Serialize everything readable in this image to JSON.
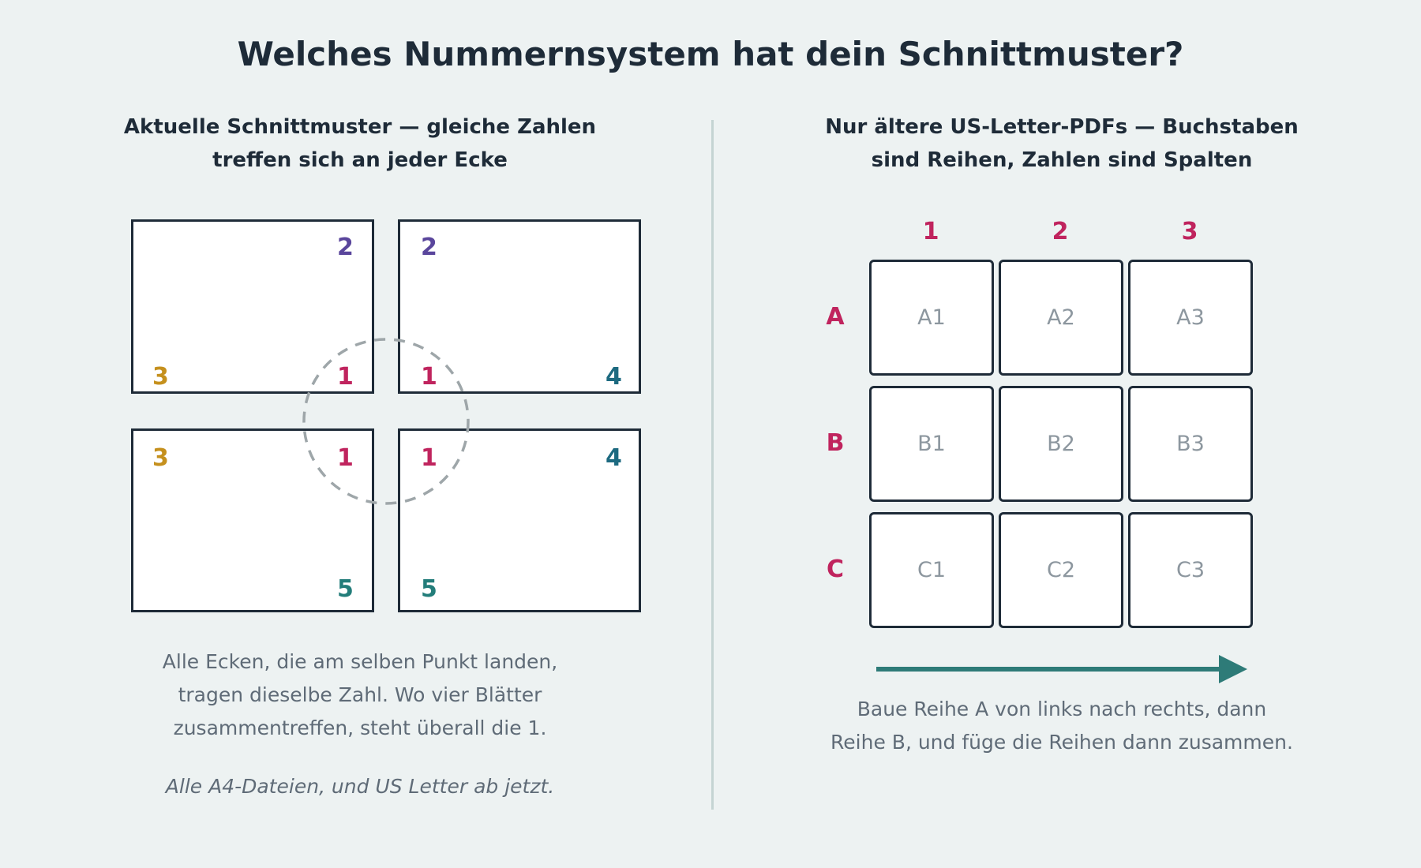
{
  "title": "Welches Nummernsystem hat dein Schnittmuster?",
  "left_panel": {
    "heading_lines": [
      "Aktuelle Schnittmuster — gleiche Zahlen",
      "treffen sich an jeder Ecke"
    ],
    "sheets": {
      "top_left": {
        "top_right": "2",
        "bottom_left": "3",
        "bottom_right": "1"
      },
      "top_right": {
        "top_left": "2",
        "bottom_left": "1",
        "bottom_right": "4"
      },
      "bottom_left": {
        "top_left": "3",
        "top_right": "1",
        "bottom_right": "5"
      },
      "bottom_right": {
        "top_left": "1",
        "top_right": "4",
        "bottom_left": "5"
      }
    },
    "description_lines": [
      "Alle Ecken, die am selben Punkt landen,",
      "tragen dieselbe Zahl. Wo vier Blätter",
      "zusammentreffen, steht überall die 1."
    ],
    "note": "Alle A4-Dateien, und US Letter ab jetzt."
  },
  "right_panel": {
    "heading_lines": [
      "Nur ältere US-Letter-PDFs — Buchstaben",
      "sind Reihen, Zahlen sind Spalten"
    ],
    "columns": [
      "1",
      "2",
      "3"
    ],
    "rows": [
      "A",
      "B",
      "C"
    ],
    "cells": [
      [
        "A1",
        "A2",
        "A3"
      ],
      [
        "B1",
        "B2",
        "B3"
      ],
      [
        "C1",
        "C2",
        "C3"
      ]
    ],
    "description_lines": [
      "Baue Reihe A von links nach rechts, dann",
      "Reihe B, und füge die Reihen dann zusammen."
    ]
  },
  "colors": {
    "num_1": "#c0245e",
    "num_2": "#5a469c",
    "num_3": "#c5901d",
    "num_4": "#1d6a80",
    "num_5": "#237d7a",
    "arrow": "#2e7b78"
  },
  "icons": {
    "corner_highlight": "dashed-circle-icon",
    "direction": "arrow-right-icon"
  }
}
